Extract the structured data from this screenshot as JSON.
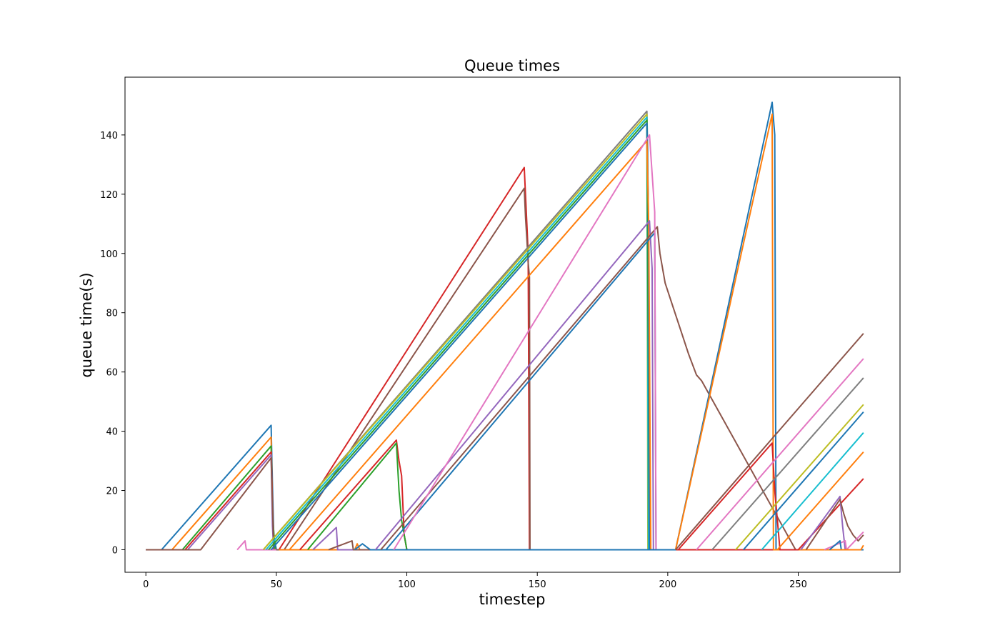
{
  "chart_data": {
    "type": "line",
    "title": "Queue times",
    "xlabel": "timestep",
    "ylabel": "queue time(s)",
    "xlim": [
      -8,
      289
    ],
    "ylim": [
      -7.6,
      159.5
    ],
    "xticks": [
      0,
      50,
      100,
      150,
      200,
      250
    ],
    "yticks": [
      0,
      20,
      40,
      60,
      80,
      100,
      120,
      140
    ],
    "grid": false,
    "legend": "none",
    "series": [
      {
        "color": "#1f77b4",
        "points": [
          [
            0,
            0
          ],
          [
            6,
            0
          ],
          [
            48,
            42
          ],
          [
            48.5,
            22
          ],
          [
            49,
            5
          ],
          [
            50,
            0
          ],
          [
            275,
            0
          ]
        ]
      },
      {
        "color": "#ff7f0e",
        "points": [
          [
            0,
            0
          ],
          [
            10,
            0
          ],
          [
            48,
            38
          ],
          [
            48.5,
            14
          ],
          [
            49,
            0
          ],
          [
            275,
            0
          ]
        ]
      },
      {
        "color": "#2ca02c",
        "points": [
          [
            0,
            0
          ],
          [
            14,
            0
          ],
          [
            48,
            35
          ],
          [
            48.5,
            12
          ],
          [
            49.5,
            0
          ],
          [
            275,
            0
          ]
        ]
      },
      {
        "color": "#d62728",
        "points": [
          [
            0,
            0
          ],
          [
            15,
            0
          ],
          [
            48,
            33
          ],
          [
            49,
            0
          ],
          [
            275,
            0
          ]
        ]
      },
      {
        "color": "#9467bd",
        "points": [
          [
            0,
            0
          ],
          [
            16,
            0
          ],
          [
            48,
            32
          ],
          [
            48.5,
            8
          ],
          [
            49,
            0
          ],
          [
            275,
            0
          ]
        ]
      },
      {
        "color": "#8c564b",
        "points": [
          [
            0,
            0
          ],
          [
            18,
            0
          ],
          [
            21,
            0
          ],
          [
            48,
            31
          ],
          [
            49,
            0
          ],
          [
            275,
            0
          ]
        ]
      },
      {
        "color": "#e377c2",
        "points": [
          [
            35,
            0
          ],
          [
            38,
            3
          ],
          [
            38.5,
            0
          ],
          [
            50,
            0
          ]
        ]
      },
      {
        "color": "#d62728",
        "points": [
          [
            50,
            0
          ],
          [
            51,
            0
          ],
          [
            145,
            129
          ],
          [
            146,
            110
          ],
          [
            146.5,
            100
          ],
          [
            147,
            0
          ],
          [
            275,
            0
          ]
        ]
      },
      {
        "color": "#8c564b",
        "points": [
          [
            50,
            0
          ],
          [
            53,
            0
          ],
          [
            145,
            122
          ],
          [
            145.5,
            112
          ],
          [
            146,
            105
          ],
          [
            146.5,
            97
          ],
          [
            147,
            92
          ],
          [
            147.2,
            0
          ],
          [
            275,
            0
          ]
        ]
      },
      {
        "color": "#7f7f7f",
        "points": [
          [
            45,
            0
          ],
          [
            192,
            148
          ],
          [
            192.3,
            135
          ],
          [
            192.8,
            0
          ]
        ]
      },
      {
        "color": "#bcbd22",
        "points": [
          [
            45,
            0
          ],
          [
            192,
            147
          ],
          [
            192.4,
            0
          ]
        ]
      },
      {
        "color": "#17becf",
        "points": [
          [
            46,
            0
          ],
          [
            192,
            146
          ],
          [
            192.6,
            0
          ]
        ]
      },
      {
        "color": "#2ca02c",
        "points": [
          [
            47,
            0
          ],
          [
            192,
            145
          ],
          [
            193,
            0
          ]
        ]
      },
      {
        "color": "#1f77b4",
        "points": [
          [
            48,
            0
          ],
          [
            192,
            144
          ],
          [
            192.5,
            120
          ],
          [
            193,
            0
          ],
          [
            203,
            0
          ]
        ]
      },
      {
        "color": "#ff7f0e",
        "points": [
          [
            55,
            0
          ],
          [
            192,
            138
          ],
          [
            192.7,
            110
          ],
          [
            193.5,
            0
          ],
          [
            203,
            0
          ]
        ]
      },
      {
        "color": "#ff7f0e",
        "points": [
          [
            51,
            0
          ],
          [
            80,
            0
          ],
          [
            81,
            2
          ],
          [
            82,
            0
          ]
        ]
      },
      {
        "color": "#d62728",
        "points": [
          [
            59,
            0
          ],
          [
            96,
            37
          ],
          [
            97,
            30
          ],
          [
            98,
            25
          ],
          [
            99,
            5
          ],
          [
            100,
            0
          ],
          [
            275,
            0
          ]
        ]
      },
      {
        "color": "#2ca02c",
        "points": [
          [
            62,
            0
          ],
          [
            96,
            36
          ],
          [
            97,
            20
          ],
          [
            98,
            10
          ],
          [
            100,
            0
          ]
        ]
      },
      {
        "color": "#9467bd",
        "points": [
          [
            64,
            0
          ],
          [
            73,
            7.5
          ],
          [
            73.5,
            0
          ],
          [
            82,
            0
          ]
        ]
      },
      {
        "color": "#8c564b",
        "points": [
          [
            70,
            0
          ],
          [
            79,
            3
          ],
          [
            79.5,
            0
          ],
          [
            86,
            0
          ]
        ]
      },
      {
        "color": "#1f77b4",
        "points": [
          [
            80,
            0
          ],
          [
            83,
            2
          ],
          [
            86,
            0
          ],
          [
            100,
            0
          ]
        ]
      },
      {
        "color": "#9467bd",
        "points": [
          [
            88,
            0
          ],
          [
            193,
            111
          ],
          [
            194,
            95
          ],
          [
            194.5,
            0
          ],
          [
            203,
            0
          ]
        ]
      },
      {
        "color": "#8c564b",
        "points": [
          [
            90,
            0
          ],
          [
            196,
            109
          ],
          [
            197,
            100
          ],
          [
            199,
            90
          ],
          [
            202,
            82
          ],
          [
            205,
            74
          ],
          [
            208,
            66
          ],
          [
            211,
            59
          ],
          [
            213,
            57
          ],
          [
            249,
            0
          ],
          [
            275,
            0
          ]
        ]
      },
      {
        "color": "#1f77b4",
        "points": [
          [
            92,
            0
          ],
          [
            195,
            107
          ],
          [
            195.5,
            0
          ],
          [
            203,
            0
          ]
        ]
      },
      {
        "color": "#e377c2",
        "points": [
          [
            95,
            0
          ],
          [
            193,
            140
          ],
          [
            194,
            127
          ],
          [
            195,
            114
          ],
          [
            195.5,
            0
          ],
          [
            203,
            0
          ]
        ]
      },
      {
        "color": "#1f77b4",
        "points": [
          [
            100,
            0
          ],
          [
            203,
            0
          ],
          [
            240,
            151
          ],
          [
            241,
            140
          ],
          [
            241.5,
            0
          ],
          [
            275,
            0
          ]
        ]
      },
      {
        "color": "#ff7f0e",
        "points": [
          [
            203,
            0
          ],
          [
            240,
            147
          ],
          [
            240.5,
            0
          ],
          [
            275,
            0
          ]
        ]
      },
      {
        "color": "#8c564b",
        "points": [
          [
            203,
            0
          ],
          [
            275,
            73
          ]
        ]
      },
      {
        "color": "#d62728",
        "points": [
          [
            204,
            0
          ],
          [
            240,
            36
          ],
          [
            241,
            20
          ],
          [
            242,
            10
          ],
          [
            243,
            0
          ],
          [
            250,
            0
          ],
          [
            275,
            24
          ]
        ]
      },
      {
        "color": "#e377c2",
        "points": [
          [
            211,
            0
          ],
          [
            275,
            64.5
          ]
        ]
      },
      {
        "color": "#7f7f7f",
        "points": [
          [
            217,
            0
          ],
          [
            275,
            58
          ]
        ]
      },
      {
        "color": "#bcbd22",
        "points": [
          [
            226,
            0
          ],
          [
            275,
            49
          ]
        ]
      },
      {
        "color": "#1f77b4",
        "points": [
          [
            229,
            0
          ],
          [
            275,
            46.5
          ]
        ]
      },
      {
        "color": "#17becf",
        "points": [
          [
            236,
            0
          ],
          [
            275,
            39.5
          ]
        ]
      },
      {
        "color": "#ff7f0e",
        "points": [
          [
            242,
            0
          ],
          [
            275,
            33
          ]
        ]
      },
      {
        "color": "#9467bd",
        "points": [
          [
            251,
            0
          ],
          [
            266,
            18
          ],
          [
            267,
            8
          ],
          [
            268,
            0
          ],
          [
            275,
            0
          ]
        ]
      },
      {
        "color": "#8c564b",
        "points": [
          [
            253,
            0
          ],
          [
            266,
            17
          ],
          [
            267.5,
            12
          ],
          [
            269,
            8
          ],
          [
            271,
            5
          ],
          [
            273,
            3
          ],
          [
            275,
            5
          ]
        ]
      },
      {
        "color": "#e377c2",
        "points": [
          [
            260,
            0
          ],
          [
            268,
            3
          ],
          [
            268.5,
            0
          ],
          [
            275,
            6
          ]
        ]
      },
      {
        "color": "#1f77b4",
        "points": [
          [
            262,
            0
          ],
          [
            266,
            3
          ],
          [
            266.5,
            0
          ],
          [
            275,
            0
          ]
        ]
      },
      {
        "color": "#ff7f0e",
        "points": [
          [
            266,
            0
          ],
          [
            274,
            0
          ],
          [
            275,
            1.5
          ]
        ]
      }
    ]
  }
}
